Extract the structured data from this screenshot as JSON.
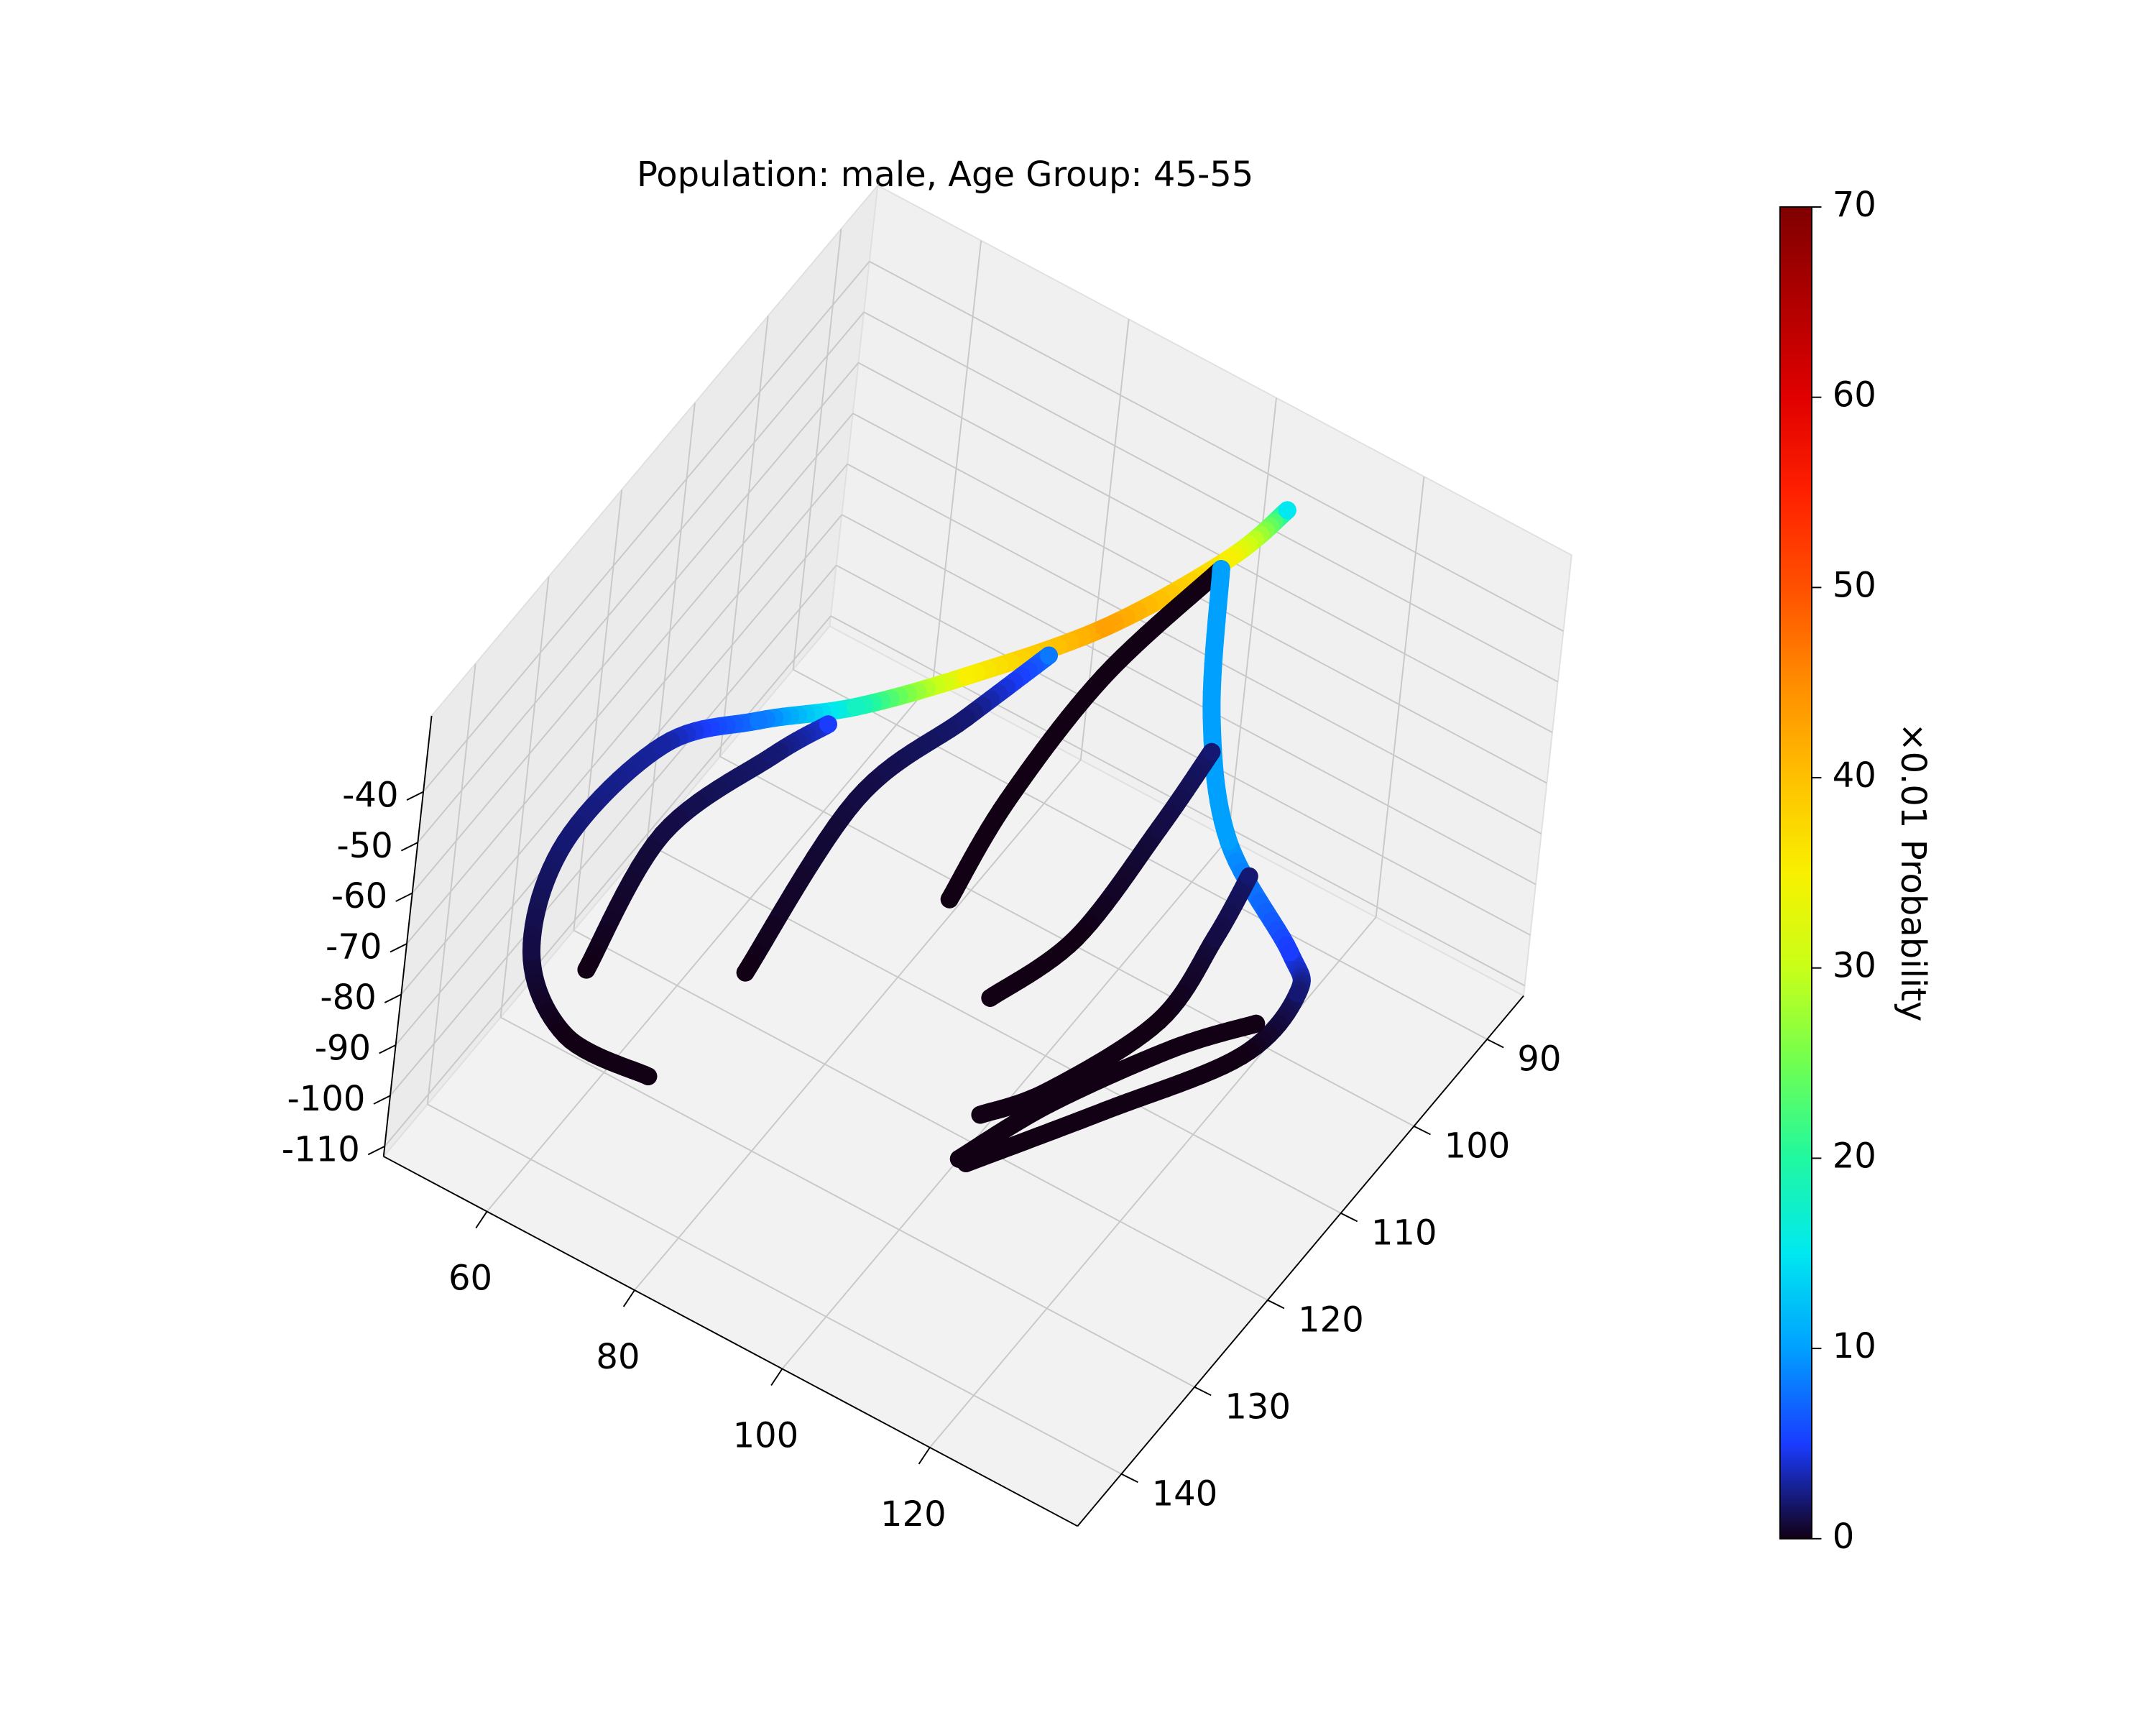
{
  "chart_data": {
    "type": "line3d",
    "title": "Population: male, Age Group: 45-55",
    "xlim": [
      46,
      140
    ],
    "xticks": [
      60,
      80,
      100,
      120
    ],
    "ylim": [
      85,
      146
    ],
    "yticks": [
      90,
      100,
      110,
      120,
      130,
      140
    ],
    "zlim": [
      -112,
      -25
    ],
    "zticks": [
      -110,
      -100,
      -90,
      -80,
      -70,
      -60,
      -50,
      -40
    ],
    "grid": true,
    "colorbar_label": "×0.01 Probability",
    "clim": [
      0,
      70
    ],
    "cticks": [
      0,
      10,
      20,
      30,
      40,
      50,
      60,
      70
    ],
    "colormap": [
      "#120015",
      "#1a3cff",
      "#00a0ff",
      "#00e8f0",
      "#20f8a0",
      "#70ff50",
      "#c8ff18",
      "#f8f000",
      "#ffc000",
      "#ff8c00",
      "#ff5000",
      "#ff2000",
      "#e00000",
      "#b00000",
      "#800000"
    ],
    "series": [
      {
        "x": [
          106.4,
          103.7,
          96.1,
          85.6,
          76.3,
          66.9,
          58.5,
          54.2,
          56.2,
          61.8,
          69.3
        ],
        "y": [
          89.2,
          94.3,
          103.3,
          111.3,
          116.7,
          120.2,
          124.5,
          132.9,
          138.8,
          138.9,
          134.4
        ],
        "z": [
          -35,
          -38,
          -42,
          -46,
          -50,
          -54,
          -58,
          -66,
          -76,
          -88,
          -98
        ],
        "values": [
          15,
          35,
          43,
          35,
          18,
          8,
          3,
          2,
          1,
          0,
          0
        ]
      },
      {
        "x": [
          74.4,
          69.6,
          61.3,
          58.6
        ],
        "y": [
          118.4,
          120.7,
          126.5,
          132.8
        ],
        "z": [
          -52,
          -58,
          -70,
          -88
        ],
        "values": [
          5,
          2,
          1,
          0
        ]
      },
      {
        "x": [
          92.4,
          86.1,
          78.1,
          73.7
        ],
        "y": [
          107.0,
          111.2,
          117.3,
          126.3
        ],
        "z": [
          -44,
          -54,
          -66,
          -88
        ],
        "values": [
          8,
          2,
          1,
          0
        ]
      },
      {
        "x": [
          103.8,
          97.1,
          93.0,
          90.5
        ],
        "y": [
          95.4,
          103.8,
          111.8,
          116.1
        ],
        "z": [
          -38,
          -50,
          -64,
          -78
        ],
        "values": [
          0,
          0,
          0,
          0
        ]
      },
      {
        "x": [
          103.8,
          109.7,
          116.2,
          126.5,
          128.4,
          125.3,
          114.0,
          102.4
        ],
        "y": [
          95.4,
          101.6,
          104.8,
          105.9,
          106.3,
          110.2,
          117.0,
          123.6
        ],
        "z": [
          -38,
          -52,
          -66,
          -78,
          -84,
          -92,
          -100,
          -108
        ],
        "values": [
          10,
          10,
          10,
          5,
          2,
          0,
          0,
          0
        ]
      },
      {
        "x": [
          111.4,
          108.7,
          104.7,
          97.9
        ],
        "y": [
          103.1,
          106.7,
          113.0,
          117.1
        ],
        "z": [
          -55,
          -66,
          -80,
          -90
        ],
        "values": [
          2,
          1,
          0,
          0
        ]
      },
      {
        "x": [
          119.5,
          117.7,
          115.5,
          107.9,
          102.0
        ],
        "y": [
          105.0,
          107.1,
          111.8,
          118.6,
          121.7
        ],
        "z": [
          -70,
          -80,
          -90,
          -98,
          -102
        ],
        "values": [
          2,
          1,
          0,
          0,
          0
        ]
      },
      {
        "x": [
          124.8,
          116.2,
          106.9,
          100.7
        ],
        "y": [
          107.9,
          110.0,
          117.1,
          122.7
        ],
        "z": [
          -90,
          -98,
          -104,
          -110
        ],
        "values": [
          0,
          0,
          0,
          0
        ]
      }
    ]
  }
}
